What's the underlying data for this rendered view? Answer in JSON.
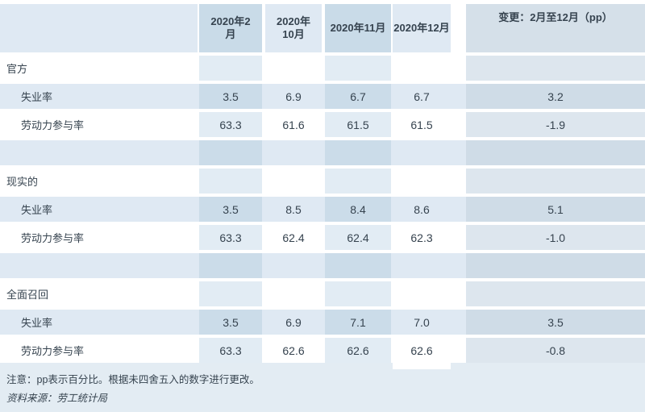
{
  "chart_data": {
    "type": "table",
    "title": "",
    "columns": [
      "2020年2月",
      "2020年10月",
      "2020年11月",
      "2020年12月",
      "变更：2月至12月（pp）"
    ],
    "sections": [
      {
        "title": "官方",
        "rows": [
          {
            "label": "失业率",
            "values": [
              "3.5",
              "6.9",
              "6.7",
              "6.7",
              "3.2"
            ]
          },
          {
            "label": "劳动力参与率",
            "values": [
              "63.3",
              "61.6",
              "61.5",
              "61.5",
              "-1.9"
            ]
          }
        ]
      },
      {
        "title": "现实的",
        "rows": [
          {
            "label": "失业率",
            "values": [
              "3.5",
              "8.5",
              "8.4",
              "8.6",
              "5.1"
            ]
          },
          {
            "label": "劳动力参与率",
            "values": [
              "63.3",
              "62.4",
              "62.4",
              "62.3",
              "-1.0"
            ]
          }
        ]
      },
      {
        "title": "全面召回",
        "rows": [
          {
            "label": "失业率",
            "values": [
              "3.5",
              "6.9",
              "7.1",
              "7.0",
              "3.5"
            ]
          },
          {
            "label": "劳动力参与率",
            "values": [
              "63.3",
              "62.6",
              "62.6",
              "62.6",
              "-0.8"
            ]
          }
        ]
      }
    ]
  },
  "footer": {
    "note": "注意：pp表示百分比。根据未四舍五入的数字进行更改。",
    "source": "资料来源：劳工统计局"
  },
  "colors": {
    "row_stripe": "#dfe9f3",
    "blue_tint_on_white": "#e2ecf4",
    "blue_tint_on_stripe": "#cbdce9",
    "gray_tint_on_white": "#dde6ee",
    "gray_tint_on_stripe": "#cfdce7",
    "footer_background": "#e3ecf3",
    "text": "#36434f"
  }
}
